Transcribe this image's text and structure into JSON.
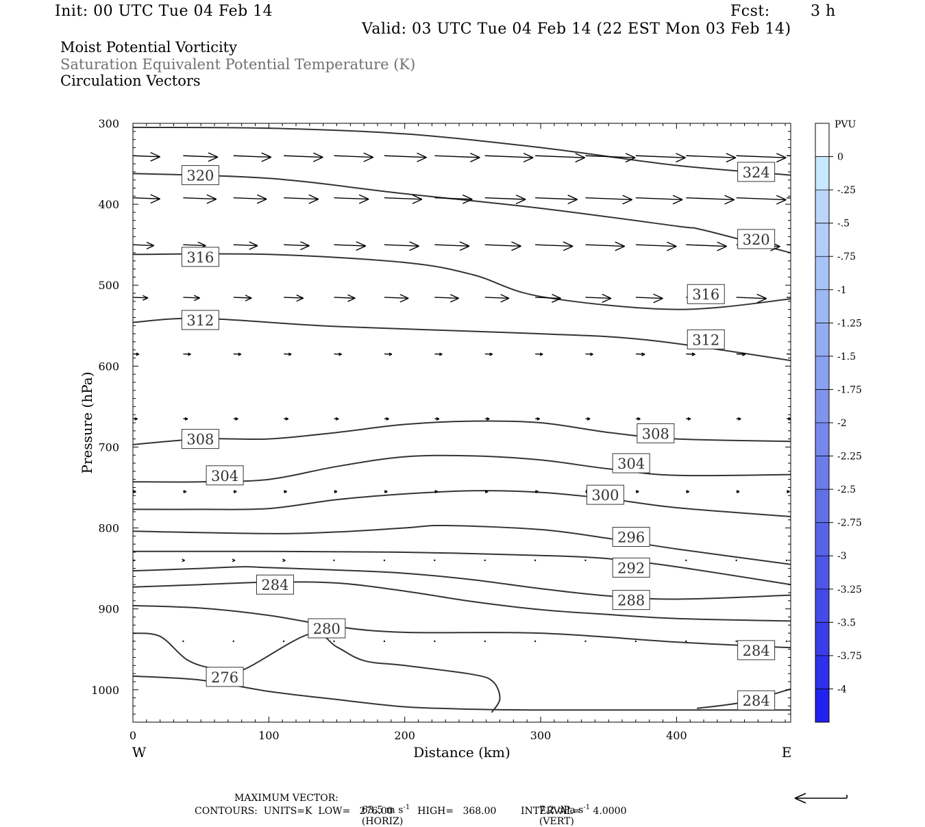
{
  "header": {
    "init": "Init: 00 UTC Tue 04 Feb 14",
    "fcst_label": "Fcst:",
    "fcst_value": "3 h",
    "valid": "Valid: 03 UTC Tue 04 Feb 14 (22 EST Mon 03 Feb 14)",
    "field1": "Moist Potential Vorticity",
    "field2": "Saturation Equivalent Potential Temperature (K)",
    "field3": "Circulation Vectors"
  },
  "footer": {
    "max_vector_label": "MAXIMUM VECTOR:",
    "horiz_value": "63.5 m s",
    "horiz_exp": "-1",
    "horiz_unit": "(HORIZ)",
    "vert_value": "7.2 dPa s",
    "vert_exp": "-1",
    "vert_unit": "(VERT)",
    "contours": "CONTOURS:  UNITS=K  LOW=   276.00        HIGH=   368.00        INTERVAL=    4.0000"
  },
  "colors": {
    "contour": "#333333",
    "vector": "#000000",
    "colorbar": [
      "#ffffff",
      "#ffffff",
      "#c8e8ff",
      "#bcd6fa",
      "#b2cef8",
      "#a8c4f6",
      "#9eb8f4",
      "#94acf2",
      "#8aa0f0",
      "#8094ee",
      "#7688ec",
      "#6c7cea",
      "#6270e8",
      "#5864e8",
      "#4e56e8",
      "#444ae8",
      "#3a3ee8",
      "#2e30ea",
      "#2222ee",
      "#1414f2"
    ]
  },
  "chart_data": {
    "type": "line",
    "title": "",
    "xlabel": "Distance (km)",
    "ylabel": "Pressure (hPa)",
    "xlim": [
      0,
      484
    ],
    "ylim": [
      1040,
      300
    ],
    "x_ticks": [
      "0",
      "100",
      "200",
      "300",
      "400"
    ],
    "x_tick_values": [
      0,
      100,
      200,
      300,
      400
    ],
    "y_ticks": [
      "300",
      "400",
      "500",
      "600",
      "700",
      "800",
      "900",
      "1000"
    ],
    "y_tick_values": [
      300,
      400,
      500,
      600,
      700,
      800,
      900,
      1000
    ],
    "x_end_labels": [
      "W",
      "E"
    ],
    "colorbar": {
      "unit": "PVU",
      "labels": [
        "0",
        "-.25",
        "-.5",
        "-.75",
        "-1",
        "-1.25",
        "-1.5",
        "-1.75",
        "-2",
        "-2.25",
        "-2.5",
        "-2.75",
        "-3",
        "-3.25",
        "-3.5",
        "-3.75",
        "-4"
      ]
    },
    "contours": [
      {
        "name": "theta_es_324a",
        "x": [
          0,
          100,
          200,
          300,
          400,
          484
        ],
        "y": [
          305,
          306,
          313,
          330,
          352,
          364
        ]
      },
      {
        "name": "theta_es_320",
        "x": [
          0,
          100,
          200,
          300,
          400,
          420,
          484
        ],
        "y": [
          362,
          368,
          387,
          405,
          427,
          432,
          460
        ]
      },
      {
        "name": "theta_es_316",
        "x": [
          0,
          100,
          200,
          250,
          300,
          400,
          484
        ],
        "y": [
          462,
          462,
          472,
          487,
          514,
          530,
          517
        ]
      },
      {
        "name": "theta_es_312",
        "x": [
          0,
          50,
          150,
          300,
          380,
          484
        ],
        "y": [
          546,
          541,
          551,
          560,
          568,
          593
        ]
      },
      {
        "name": "theta_es_308",
        "x": [
          0,
          50,
          100,
          150,
          200,
          250,
          300,
          350,
          400,
          484
        ],
        "y": [
          697,
          690,
          690,
          682,
          672,
          668,
          670,
          682,
          690,
          693
        ]
      },
      {
        "name": "theta_es_304",
        "x": [
          0,
          50,
          100,
          150,
          200,
          250,
          300,
          350,
          400,
          484
        ],
        "y": [
          743,
          743,
          740,
          724,
          712,
          711,
          716,
          727,
          735,
          734
        ]
      },
      {
        "name": "theta_es_300",
        "x": [
          0,
          50,
          100,
          150,
          200,
          250,
          300,
          350,
          400,
          484
        ],
        "y": [
          777,
          777,
          776,
          765,
          758,
          754,
          756,
          764,
          775,
          786
        ]
      },
      {
        "name": "theta_es_296",
        "x": [
          0,
          100,
          150,
          200,
          230,
          300,
          350,
          400,
          484
        ],
        "y": [
          804,
          807,
          805,
          800,
          797,
          802,
          813,
          826,
          845
        ]
      },
      {
        "name": "theta_es_292",
        "x": [
          0,
          100,
          200,
          300,
          350,
          400,
          484
        ],
        "y": [
          829,
          829,
          830,
          834,
          838,
          848,
          870
        ]
      },
      {
        "name": "theta_es_288",
        "x": [
          0,
          50,
          80,
          100,
          150,
          200,
          250,
          300,
          350,
          400,
          484
        ],
        "y": [
          853,
          850,
          848,
          849,
          852,
          856,
          864,
          875,
          884,
          888,
          883
        ]
      },
      {
        "name": "theta_es_284",
        "x": [
          0,
          50,
          100,
          150,
          200,
          250,
          300,
          350,
          400,
          484
        ],
        "y": [
          873,
          870,
          867,
          868,
          878,
          891,
          901,
          907,
          912,
          915
        ]
      },
      {
        "name": "theta_es_284b",
        "x": [
          0,
          50,
          100,
          150,
          200,
          300,
          400,
          484
        ],
        "y": [
          896,
          899,
          908,
          922,
          929,
          930,
          941,
          948
        ]
      },
      {
        "name": "theta_es_280",
        "x": [
          0,
          20,
          40,
          60,
          80,
          130,
          150,
          170,
          200,
          250,
          265,
          270,
          264
        ],
        "y": [
          930,
          934,
          963,
          974,
          976,
          931,
          947,
          964,
          970,
          981,
          990,
          1011,
          1028
        ]
      },
      {
        "name": "theta_es_276",
        "x": [
          0,
          50,
          100,
          150,
          200,
          250,
          300,
          350,
          400,
          484
        ],
        "y": [
          983,
          988,
          1002,
          1012,
          1021,
          1024,
          1025,
          1025,
          1025,
          1025
        ]
      },
      {
        "name": "theta_es_284c",
        "x": [
          415,
          450,
          484
        ],
        "y": [
          1023,
          1015,
          999
        ]
      }
    ],
    "contour_labels": [
      {
        "text": "324",
        "x": 446,
        "y": 360
      },
      {
        "text": "320",
        "x": 37,
        "y": 364
      },
      {
        "text": "320",
        "x": 446,
        "y": 443
      },
      {
        "text": "316",
        "x": 37,
        "y": 465
      },
      {
        "text": "316",
        "x": 409,
        "y": 511
      },
      {
        "text": "312",
        "x": 37,
        "y": 543
      },
      {
        "text": "312",
        "x": 409,
        "y": 567
      },
      {
        "text": "308",
        "x": 37,
        "y": 690
      },
      {
        "text": "308",
        "x": 372,
        "y": 683
      },
      {
        "text": "304",
        "x": 55,
        "y": 735
      },
      {
        "text": "304",
        "x": 354,
        "y": 720
      },
      {
        "text": "300",
        "x": 335,
        "y": 759
      },
      {
        "text": "296",
        "x": 354,
        "y": 811
      },
      {
        "text": "292",
        "x": 354,
        "y": 849
      },
      {
        "text": "288",
        "x": 354,
        "y": 889
      },
      {
        "text": "284",
        "x": 92,
        "y": 870
      },
      {
        "text": "280",
        "x": 130,
        "y": 924
      },
      {
        "text": "276",
        "x": 55,
        "y": 984
      },
      {
        "text": "284",
        "x": 446,
        "y": 951
      },
      {
        "text": "284",
        "x": 446,
        "y": 1013
      }
    ],
    "vectors": [
      {
        "p": 340,
        "x": [
          0,
          37,
          74,
          111,
          148,
          185,
          222,
          259,
          296,
          333,
          370,
          407,
          444,
          481
        ],
        "u": [
          18,
          23,
          25,
          26,
          26,
          28,
          30,
          32,
          33,
          33,
          33,
          33,
          33,
          33
        ],
        "w": [
          0,
          0,
          0,
          0,
          0,
          0,
          0,
          0,
          0,
          0,
          0,
          0,
          0,
          0
        ]
      },
      {
        "p": 392,
        "x": [
          0,
          37,
          74,
          111,
          148,
          185,
          222,
          259,
          296,
          333,
          370,
          407,
          444,
          481
        ],
        "u": [
          18,
          22,
          22,
          23,
          23,
          25,
          25,
          27,
          28,
          31,
          31,
          32,
          33,
          33
        ],
        "w": [
          0,
          0,
          0,
          0,
          0,
          0,
          0,
          0,
          0,
          0,
          0,
          0,
          0,
          0
        ]
      },
      {
        "p": 450,
        "x": [
          0,
          37,
          74,
          111,
          148,
          185,
          222,
          259,
          296,
          333,
          370,
          407,
          444,
          481
        ],
        "u": [
          14,
          15,
          16,
          17,
          21,
          23,
          23,
          24,
          25,
          26,
          27,
          27,
          29,
          30
        ],
        "w": [
          0,
          0,
          0,
          0,
          0,
          0,
          0,
          0,
          0,
          0,
          0,
          0,
          0,
          0
        ]
      },
      {
        "p": 515,
        "x": [
          0,
          37,
          74,
          111,
          148,
          185,
          222,
          259,
          296,
          333,
          370,
          407,
          444,
          481
        ],
        "u": [
          10,
          11,
          12,
          13,
          14,
          16,
          16,
          16,
          17,
          17,
          18,
          19,
          20,
          20
        ],
        "w": [
          0,
          0,
          0,
          0,
          0,
          0,
          0,
          0,
          0,
          0,
          0,
          0,
          0,
          0
        ]
      },
      {
        "p": 585,
        "x": [
          0,
          37,
          74,
          111,
          148,
          185,
          222,
          259,
          296,
          333,
          370,
          407,
          444,
          481
        ],
        "u": [
          4,
          5,
          5,
          5,
          5,
          5,
          5,
          5,
          5,
          5,
          6,
          6,
          6,
          6
        ],
        "w": [
          0,
          0,
          0,
          0,
          0,
          0,
          0,
          0,
          0,
          0,
          0,
          0,
          0,
          0
        ]
      },
      {
        "p": 665,
        "x": [
          0,
          37,
          74,
          111,
          148,
          185,
          222,
          259,
          296,
          333,
          370,
          407,
          444,
          481
        ],
        "u": [
          3,
          3,
          3,
          3,
          3,
          3,
          3,
          3,
          3,
          3,
          3,
          3,
          3,
          3
        ],
        "w": [
          0,
          0,
          0,
          0,
          0,
          0,
          0,
          0,
          0,
          0,
          0,
          0,
          0,
          0
        ]
      },
      {
        "p": 755,
        "x": [
          0,
          37,
          74,
          111,
          148,
          185,
          222,
          259,
          296,
          333,
          370,
          407,
          444,
          481
        ],
        "u": [
          2,
          2,
          2,
          2,
          2,
          2,
          2,
          2,
          2,
          2,
          2,
          2,
          2,
          2
        ],
        "w": [
          0,
          0,
          0,
          0,
          0,
          0,
          0,
          0,
          0,
          0,
          0,
          0,
          0,
          0
        ]
      },
      {
        "p": 840,
        "x": [
          0,
          37,
          74,
          111,
          148,
          185,
          222,
          259,
          296,
          333,
          370,
          407,
          444,
          481
        ],
        "u": [
          1,
          1,
          1,
          1,
          0,
          0,
          0,
          0,
          0,
          0,
          0,
          0,
          0,
          0
        ],
        "w": [
          0,
          0,
          0,
          0,
          0,
          0,
          0,
          0,
          0,
          0,
          0,
          0,
          0,
          0
        ]
      },
      {
        "p": 940,
        "x": [
          0,
          37,
          74,
          111,
          148,
          185,
          222,
          259,
          296,
          333,
          370,
          407,
          444,
          481
        ],
        "u": [
          0,
          0,
          0,
          0,
          0,
          0,
          0,
          0,
          0,
          0,
          0,
          0,
          0,
          0
        ],
        "w": [
          0,
          0,
          0,
          0,
          0,
          0,
          0,
          0,
          0,
          0,
          0,
          0,
          0,
          0
        ]
      }
    ],
    "grid": false,
    "legend": "right colorbar"
  }
}
